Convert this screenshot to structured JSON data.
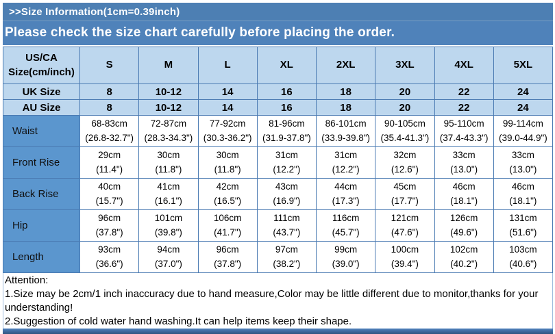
{
  "header": {
    "title": ">>Size Information(1cm=0.39inch)",
    "subtitle": "Please check the size chart carefully before placing the order."
  },
  "table": {
    "corner_line1": "US/CA",
    "corner_line2": "Size(cm/inch)",
    "sizes": [
      "S",
      "M",
      "L",
      "XL",
      "2XL",
      "3XL",
      "4XL",
      "5XL"
    ],
    "uk_row": {
      "label": "UK Size",
      "values": [
        "8",
        "10-12",
        "14",
        "16",
        "18",
        "20",
        "22",
        "24"
      ]
    },
    "au_row": {
      "label": "AU Size",
      "values": [
        "8",
        "10-12",
        "14",
        "16",
        "18",
        "20",
        "22",
        "24"
      ]
    },
    "measurements": [
      {
        "label": "Waist",
        "cm": [
          "68-83cm",
          "72-87cm",
          "77-92cm",
          "81-96cm",
          "86-101cm",
          "90-105cm",
          "95-110cm",
          "99-114cm"
        ],
        "inch": [
          "(26.8-32.7\")",
          "(28.3-34.3\")",
          "(30.3-36.2\")",
          "(31.9-37.8\")",
          "(33.9-39.8\")",
          "(35.4-41.3\")",
          "(37.4-43.3\")",
          "(39.0-44.9\")"
        ]
      },
      {
        "label": "Front Rise",
        "cm": [
          "29cm",
          "30cm",
          "30cm",
          "31cm",
          "31cm",
          "32cm",
          "33cm",
          "33cm"
        ],
        "inch": [
          "(11.4\")",
          "(11.8\")",
          "(11.8\")",
          "(12.2\")",
          "(12.2\")",
          "(12.6\")",
          "(13.0\")",
          "(13.0\")"
        ]
      },
      {
        "label": "Back Rise",
        "cm": [
          "40cm",
          "41cm",
          "42cm",
          "43cm",
          "44cm",
          "45cm",
          "46cm",
          "46cm"
        ],
        "inch": [
          "(15.7\")",
          "(16.1\")",
          "(16.5\")",
          "(16.9\")",
          "(17.3\")",
          "(17.7\")",
          "(18.1\")",
          "(18.1\")"
        ]
      },
      {
        "label": "Hip",
        "cm": [
          "96cm",
          "101cm",
          "106cm",
          "111cm",
          "116cm",
          "121cm",
          "126cm",
          "131cm"
        ],
        "inch": [
          "(37.8\")",
          "(39.8\")",
          "(41.7\")",
          "(43.7\")",
          "(45.7\")",
          "(47.6\")",
          "(49.6\")",
          "(51.6\")"
        ]
      },
      {
        "label": "Length",
        "cm": [
          "93cm",
          "94cm",
          "96cm",
          "97cm",
          "99cm",
          "100cm",
          "102cm",
          "103cm"
        ],
        "inch": [
          "(36.6\")",
          "(37.0\")",
          "(37.8\")",
          "(38.2\")",
          "(39.0\")",
          "(39.4\")",
          "(40.2\")",
          "(40.6\")"
        ]
      }
    ]
  },
  "attention": {
    "title": "Attention:",
    "line1": "1.Size may be 2cm/1 inch inaccuracy due to hand measure,Color may be little different due to monitor,thanks for your understanding!",
    "line2": "2.Suggestion of cold water hand washing.It can help items keep their shape."
  },
  "colors": {
    "banner_blue": "#4f82ba",
    "banner_title_blue": "#4d7fb3",
    "cell_light_blue": "#bdd7ee",
    "row_label_blue": "#5b96ce",
    "table_border_blue": "#4a7ab2",
    "bottom_strip_top": "#4f81bd",
    "bottom_strip_bottom": "#2f5580"
  }
}
